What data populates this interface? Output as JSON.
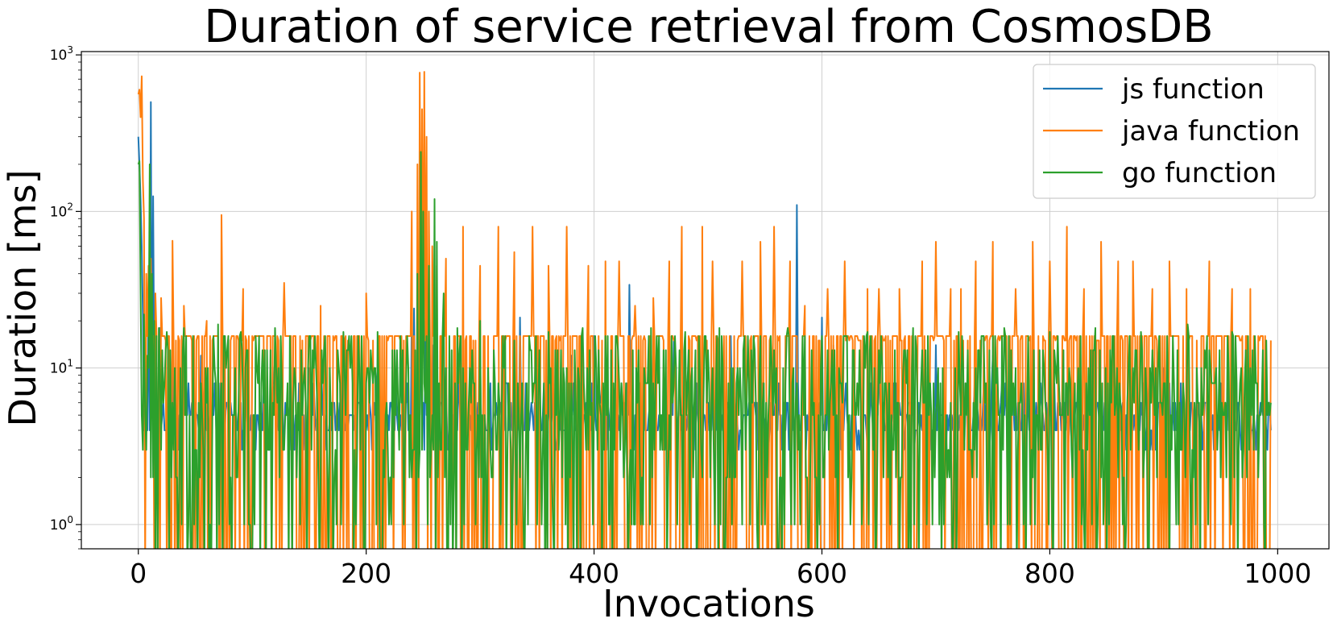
{
  "chart_data": {
    "type": "line",
    "title": "Duration of service retrieval from CosmosDB",
    "xlabel": "Invocations",
    "ylabel": "Duration [ms]",
    "yscale": "log",
    "xlim": [
      -50,
      1045
    ],
    "ylim": [
      0.7,
      1050
    ],
    "grid": true,
    "legend_position": "top-right",
    "xticks": [
      0,
      200,
      400,
      600,
      800,
      1000
    ],
    "xtick_labels": [
      "0",
      "200",
      "400",
      "600",
      "800",
      "1000"
    ],
    "yticks": [
      1,
      10,
      100,
      1000
    ],
    "ytick_labels": [
      {
        "base": "10",
        "exp": "0"
      },
      {
        "base": "10",
        "exp": "1"
      },
      {
        "base": "10",
        "exp": "2"
      },
      {
        "base": "10",
        "exp": "3"
      }
    ],
    "n_invocations": 995,
    "series": [
      {
        "name": "js function",
        "color": "#1f77b4",
        "baseline_levels": [
          3,
          4,
          4,
          4,
          5,
          5,
          5,
          6,
          6,
          8
        ],
        "spikes": [
          [
            0,
            300
          ],
          [
            1,
            200
          ],
          [
            2,
            120
          ],
          [
            3,
            60
          ],
          [
            4,
            22
          ],
          [
            6,
            10
          ],
          [
            9,
            30
          ],
          [
            11,
            500
          ],
          [
            13,
            125
          ],
          [
            15,
            20
          ],
          [
            19,
            18
          ],
          [
            30,
            15
          ],
          [
            55,
            12
          ],
          [
            75,
            12
          ],
          [
            95,
            10
          ],
          [
            120,
            12
          ],
          [
            150,
            10
          ],
          [
            180,
            12
          ],
          [
            210,
            10
          ],
          [
            240,
            22
          ],
          [
            242,
            24
          ],
          [
            248,
            18
          ],
          [
            252,
            20
          ],
          [
            258,
            14
          ],
          [
            300,
            12
          ],
          [
            320,
            16
          ],
          [
            335,
            21
          ],
          [
            360,
            14
          ],
          [
            380,
            12
          ],
          [
            400,
            16
          ],
          [
            431,
            34
          ],
          [
            450,
            14
          ],
          [
            470,
            15
          ],
          [
            520,
            16
          ],
          [
            578,
            110
          ],
          [
            600,
            21
          ],
          [
            610,
            14
          ],
          [
            650,
            12
          ],
          [
            700,
            14
          ],
          [
            750,
            12
          ],
          [
            800,
            14
          ],
          [
            850,
            12
          ],
          [
            900,
            10
          ],
          [
            950,
            8
          ]
        ]
      },
      {
        "name": "java function",
        "color": "#ff7f0e",
        "baseline_levels": [
          0.5,
          0.5,
          0.5,
          0.5,
          16,
          16,
          16,
          16,
          16,
          15
        ],
        "spikes": [
          [
            0,
            560
          ],
          [
            1,
            600
          ],
          [
            2,
            400
          ],
          [
            3,
            730
          ],
          [
            4,
            160
          ],
          [
            5,
            90
          ],
          [
            7,
            40
          ],
          [
            9,
            45
          ],
          [
            11,
            50
          ],
          [
            15,
            30
          ],
          [
            20,
            28
          ],
          [
            23,
            16
          ],
          [
            30,
            65
          ],
          [
            40,
            25
          ],
          [
            60,
            20
          ],
          [
            73,
            95
          ],
          [
            92,
            32
          ],
          [
            128,
            35
          ],
          [
            160,
            25
          ],
          [
            200,
            30
          ],
          [
            240,
            100
          ],
          [
            245,
            200
          ],
          [
            247,
            770
          ],
          [
            249,
            450
          ],
          [
            251,
            780
          ],
          [
            253,
            300
          ],
          [
            255,
            100
          ],
          [
            258,
            60
          ],
          [
            262,
            45
          ],
          [
            270,
            50
          ],
          [
            285,
            80
          ],
          [
            300,
            45
          ],
          [
            316,
            80
          ],
          [
            330,
            55
          ],
          [
            346,
            80
          ],
          [
            360,
            45
          ],
          [
            376,
            80
          ],
          [
            395,
            45
          ],
          [
            410,
            48
          ],
          [
            422,
            48
          ],
          [
            436,
            25
          ],
          [
            452,
            28
          ],
          [
            466,
            48
          ],
          [
            477,
            80
          ],
          [
            495,
            80
          ],
          [
            504,
            48
          ],
          [
            530,
            48
          ],
          [
            546,
            64
          ],
          [
            558,
            80
          ],
          [
            572,
            48
          ],
          [
            585,
            25
          ],
          [
            605,
            32
          ],
          [
            620,
            48
          ],
          [
            640,
            32
          ],
          [
            650,
            32
          ],
          [
            668,
            32
          ],
          [
            680,
            16
          ],
          [
            688,
            48
          ],
          [
            700,
            64
          ],
          [
            713,
            32
          ],
          [
            722,
            32
          ],
          [
            735,
            48
          ],
          [
            750,
            64
          ],
          [
            770,
            32
          ],
          [
            785,
            64
          ],
          [
            800,
            48
          ],
          [
            815,
            80
          ],
          [
            830,
            32
          ],
          [
            845,
            64
          ],
          [
            860,
            48
          ],
          [
            873,
            48
          ],
          [
            890,
            32
          ],
          [
            905,
            48
          ],
          [
            920,
            32
          ],
          [
            940,
            48
          ],
          [
            960,
            32
          ],
          [
            976,
            32
          ],
          [
            985,
            16
          ]
        ]
      },
      {
        "name": "go function",
        "color": "#2ca02c",
        "baseline_levels": [
          0.5,
          1,
          2,
          3,
          5,
          6,
          8,
          10,
          13,
          16
        ],
        "spikes": [
          [
            0,
            200
          ],
          [
            1,
            210
          ],
          [
            2,
            30
          ],
          [
            3,
            5
          ],
          [
            4,
            3
          ],
          [
            5,
            22
          ],
          [
            8,
            12
          ],
          [
            10,
            200
          ],
          [
            12,
            40
          ],
          [
            14,
            20
          ],
          [
            18,
            18
          ],
          [
            25,
            17
          ],
          [
            40,
            18
          ],
          [
            70,
            19
          ],
          [
            90,
            17
          ],
          [
            120,
            18
          ],
          [
            150,
            16
          ],
          [
            180,
            17
          ],
          [
            210,
            17
          ],
          [
            230,
            16
          ],
          [
            245,
            40
          ],
          [
            248,
            240
          ],
          [
            250,
            100
          ],
          [
            255,
            45
          ],
          [
            260,
            120
          ],
          [
            262,
            64
          ],
          [
            268,
            30
          ],
          [
            280,
            18
          ],
          [
            300,
            20
          ],
          [
            330,
            15
          ],
          [
            360,
            17
          ],
          [
            390,
            18
          ],
          [
            420,
            16
          ],
          [
            450,
            18
          ],
          [
            480,
            17
          ],
          [
            510,
            18
          ],
          [
            540,
            16
          ],
          [
            570,
            18
          ],
          [
            600,
            16
          ],
          [
            640,
            17
          ],
          [
            680,
            18
          ],
          [
            720,
            17
          ],
          [
            760,
            18
          ],
          [
            800,
            17
          ],
          [
            840,
            18
          ],
          [
            880,
            17
          ],
          [
            921,
            19
          ],
          [
            960,
            17
          ],
          [
            980,
            16
          ],
          [
            990,
            15
          ]
        ]
      }
    ]
  }
}
